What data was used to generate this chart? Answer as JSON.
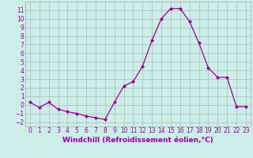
{
  "x": [
    0,
    1,
    2,
    3,
    4,
    5,
    6,
    7,
    8,
    9,
    10,
    11,
    12,
    13,
    14,
    15,
    16,
    17,
    18,
    19,
    20,
    21,
    22,
    23
  ],
  "y": [
    0.3,
    -0.3,
    0.3,
    -0.5,
    -0.8,
    -1.0,
    -1.3,
    -1.5,
    -1.7,
    0.3,
    2.2,
    2.7,
    4.5,
    7.5,
    10.0,
    11.2,
    11.2,
    9.7,
    7.2,
    4.3,
    3.2,
    3.2,
    -0.2,
    -0.2
  ],
  "line_color": "#990099",
  "marker": "D",
  "markersize": 2,
  "linewidth": 0.9,
  "bg_color": "#cceee8",
  "grid_color": "#aaaaaa",
  "xlabel": "Windchill (Refroidissement éolien,°C)",
  "xlim": [
    -0.5,
    23.5
  ],
  "ylim": [
    -2.5,
    12.0
  ],
  "yticks": [
    -2,
    -1,
    0,
    1,
    2,
    3,
    4,
    5,
    6,
    7,
    8,
    9,
    10,
    11
  ],
  "xticks": [
    0,
    1,
    2,
    3,
    4,
    5,
    6,
    7,
    8,
    9,
    10,
    11,
    12,
    13,
    14,
    15,
    16,
    17,
    18,
    19,
    20,
    21,
    22,
    23
  ],
  "tick_fontsize": 5.5,
  "xlabel_fontsize": 6.5
}
